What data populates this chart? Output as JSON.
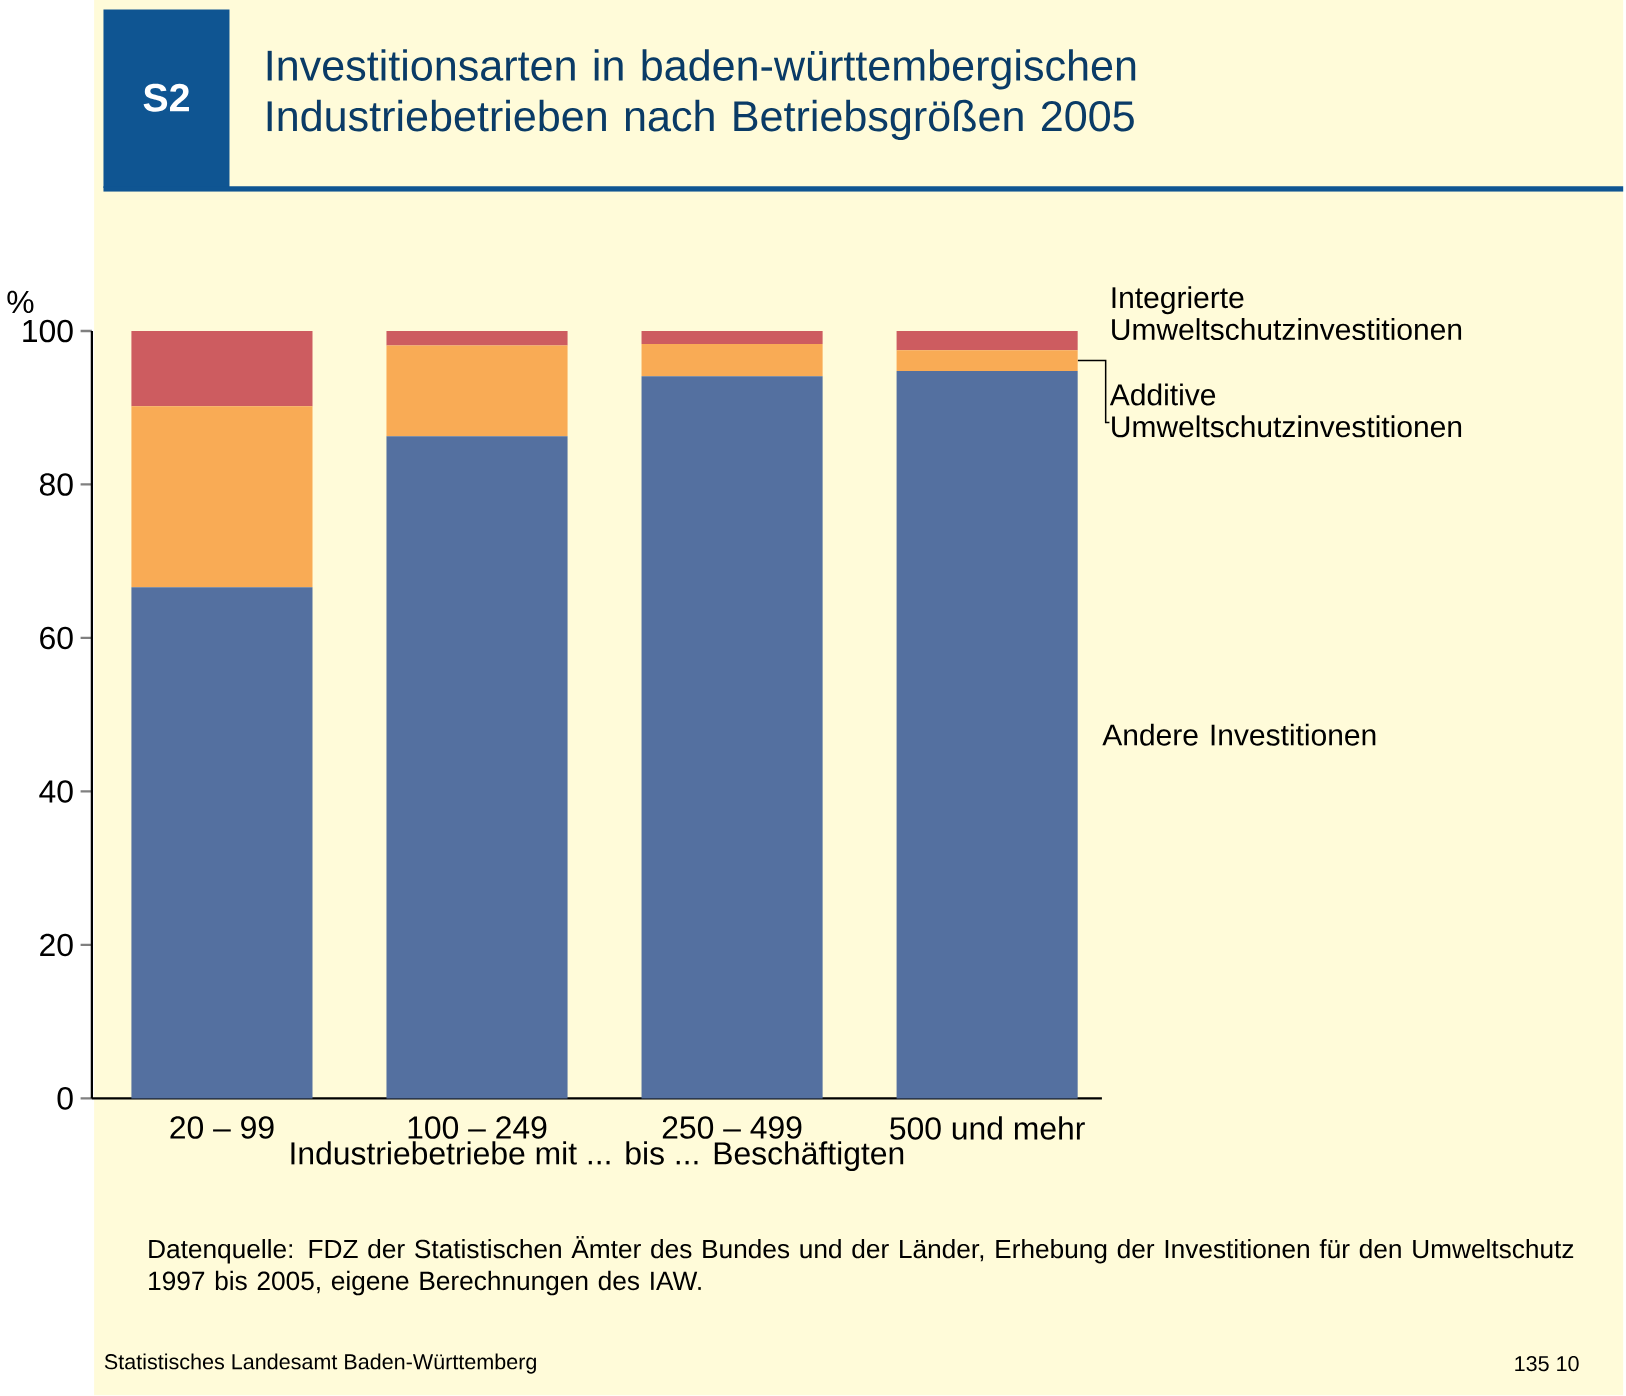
{
  "chart_data": {
    "type": "bar",
    "stacked": true,
    "title": "Investitionsarten in baden-württembergischen Industriebetrieben nach Betriebsgrößen 2005",
    "xlabel": "Industriebetriebe mit ... bis ... Beschäftigten",
    "ylabel": "%",
    "categories": [
      "20 – 99",
      "100 – 249",
      "250 – 499",
      "500 und mehr"
    ],
    "series": [
      {
        "name": "Andere Investitionen",
        "color": "#5470a0",
        "values": [
          66.6,
          86.3,
          94.1,
          94.8
        ]
      },
      {
        "name": "Additive Umweltschutzinvestitionen",
        "color": "#f9ab55",
        "values": [
          23.6,
          11.8,
          4.2,
          2.7
        ]
      },
      {
        "name": "Integrierte Umweltschutzinvestitionen",
        "color": "#cd5c60",
        "values": [
          9.8,
          1.9,
          1.7,
          2.5
        ]
      }
    ],
    "ylim": [
      0,
      100
    ],
    "yticks": [
      0,
      20,
      40,
      60,
      80,
      100
    ],
    "grid": false,
    "legend": "right",
    "annotations": [
      "S2",
      "Datenquelle: FDZ der Statistischen Ämter des Bundes und der Länder, Erhebung der Investitionen für den Umweltschutz 1997 bis 2005, eigene Berechnungen des IAW.",
      "Statistisches Landesamt Baden-Württemberg",
      "135 10"
    ]
  }
}
